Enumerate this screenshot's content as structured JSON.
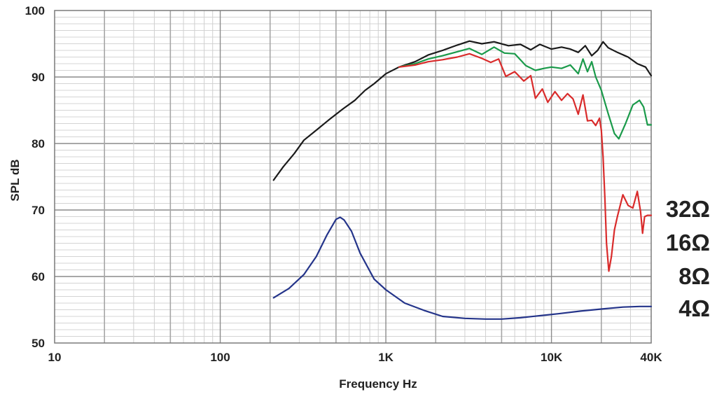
{
  "chart_data": {
    "type": "line",
    "title": "",
    "xlabel": "Frequency Hz",
    "ylabel": "SPL dB",
    "xscale": "log",
    "xlim": [
      10,
      40000
    ],
    "ylim": [
      50,
      100
    ],
    "grid": true,
    "x_tick_values": [
      10,
      100,
      1000,
      10000,
      40000
    ],
    "x_tick_labels": [
      "10",
      "100",
      "1K",
      "10K",
      "40K"
    ],
    "y_tick_values": [
      50,
      60,
      70,
      80,
      90,
      100
    ],
    "y_tick_labels": [
      "50",
      "60",
      "70",
      "80",
      "90",
      "100"
    ],
    "legend_labels": [
      "32Ω",
      "16Ω",
      "8Ω",
      "4Ω"
    ],
    "legend_position": "right",
    "series": [
      {
        "color": "#1a1a1a",
        "points": [
          [
            210,
            74.5
          ],
          [
            240,
            76.5
          ],
          [
            280,
            78.5
          ],
          [
            320,
            80.5
          ],
          [
            380,
            82
          ],
          [
            450,
            83.5
          ],
          [
            550,
            85.2
          ],
          [
            650,
            86.5
          ],
          [
            750,
            88
          ],
          [
            850,
            89
          ],
          [
            1000,
            90.5
          ],
          [
            1200,
            91.5
          ],
          [
            1500,
            92.3
          ],
          [
            1800,
            93.3
          ],
          [
            2200,
            94
          ],
          [
            2700,
            94.8
          ],
          [
            3200,
            95.4
          ],
          [
            3800,
            95
          ],
          [
            4500,
            95.3
          ],
          [
            5500,
            94.7
          ],
          [
            6500,
            94.9
          ],
          [
            7500,
            94.1
          ],
          [
            8500,
            94.9
          ],
          [
            10000,
            94.2
          ],
          [
            11500,
            94.5
          ],
          [
            13000,
            94.2
          ],
          [
            14500,
            93.7
          ],
          [
            16000,
            94.7
          ],
          [
            17500,
            93.2
          ],
          [
            19000,
            94
          ],
          [
            20500,
            95.3
          ],
          [
            22000,
            94.4
          ],
          [
            25000,
            93.7
          ],
          [
            29000,
            93
          ],
          [
            33000,
            92
          ],
          [
            37000,
            91.5
          ],
          [
            40000,
            90.2
          ]
        ]
      },
      {
        "color": "#1a9a4a",
        "points": [
          [
            1200,
            91.5
          ],
          [
            1500,
            92
          ],
          [
            1800,
            92.7
          ],
          [
            2200,
            93.2
          ],
          [
            2700,
            93.8
          ],
          [
            3200,
            94.3
          ],
          [
            3800,
            93.4
          ],
          [
            4500,
            94.5
          ],
          [
            5200,
            93.6
          ],
          [
            6000,
            93.5
          ],
          [
            7000,
            91.7
          ],
          [
            8000,
            91
          ],
          [
            9000,
            91.3
          ],
          [
            10000,
            91.5
          ],
          [
            11500,
            91.3
          ],
          [
            13000,
            91.8
          ],
          [
            14500,
            90.5
          ],
          [
            15500,
            92.7
          ],
          [
            16500,
            90.8
          ],
          [
            17500,
            92.3
          ],
          [
            18500,
            90
          ],
          [
            20000,
            88
          ],
          [
            22000,
            84.5
          ],
          [
            24000,
            81.5
          ],
          [
            25500,
            80.7
          ],
          [
            28000,
            83
          ],
          [
            31000,
            85.8
          ],
          [
            34000,
            86.5
          ],
          [
            36000,
            85.5
          ],
          [
            38000,
            82.8
          ],
          [
            40000,
            82.8
          ]
        ]
      },
      {
        "color": "#d92b2b",
        "points": [
          [
            1200,
            91.5
          ],
          [
            1500,
            91.8
          ],
          [
            1800,
            92.3
          ],
          [
            2200,
            92.6
          ],
          [
            2700,
            93
          ],
          [
            3200,
            93.5
          ],
          [
            3800,
            92.8
          ],
          [
            4300,
            92.2
          ],
          [
            4800,
            92.7
          ],
          [
            5300,
            90.1
          ],
          [
            6000,
            90.8
          ],
          [
            6800,
            89.4
          ],
          [
            7500,
            90.2
          ],
          [
            8000,
            86.8
          ],
          [
            8800,
            88.2
          ],
          [
            9500,
            86.2
          ],
          [
            10500,
            87.8
          ],
          [
            11500,
            86.5
          ],
          [
            12500,
            87.5
          ],
          [
            13500,
            86.7
          ],
          [
            14500,
            84.4
          ],
          [
            15500,
            87.3
          ],
          [
            16500,
            83.4
          ],
          [
            17500,
            83.5
          ],
          [
            18500,
            82.7
          ],
          [
            19500,
            83.8
          ],
          [
            20000,
            82
          ],
          [
            20500,
            78
          ],
          [
            21000,
            72
          ],
          [
            21500,
            65
          ],
          [
            22200,
            60.8
          ],
          [
            23000,
            63
          ],
          [
            24000,
            67
          ],
          [
            25000,
            69
          ],
          [
            27000,
            72.3
          ],
          [
            29000,
            70.7
          ],
          [
            31000,
            70.3
          ],
          [
            33000,
            72.8
          ],
          [
            34500,
            69.8
          ],
          [
            35500,
            66.5
          ],
          [
            36500,
            69
          ],
          [
            38000,
            69.2
          ],
          [
            40000,
            69.2
          ]
        ]
      },
      {
        "color": "#24348a",
        "points": [
          [
            210,
            56.8
          ],
          [
            260,
            58.2
          ],
          [
            320,
            60.3
          ],
          [
            380,
            63
          ],
          [
            440,
            66.2
          ],
          [
            500,
            68.6
          ],
          [
            530,
            68.9
          ],
          [
            560,
            68.5
          ],
          [
            620,
            66.8
          ],
          [
            700,
            63.5
          ],
          [
            850,
            59.6
          ],
          [
            1000,
            58
          ],
          [
            1300,
            56
          ],
          [
            1700,
            54.9
          ],
          [
            2200,
            54
          ],
          [
            3000,
            53.7
          ],
          [
            4000,
            53.6
          ],
          [
            5000,
            53.6
          ],
          [
            6500,
            53.8
          ],
          [
            8500,
            54.1
          ],
          [
            11000,
            54.4
          ],
          [
            15000,
            54.8
          ],
          [
            20000,
            55.1
          ],
          [
            27000,
            55.4
          ],
          [
            34000,
            55.5
          ],
          [
            40000,
            55.5
          ]
        ]
      }
    ]
  }
}
